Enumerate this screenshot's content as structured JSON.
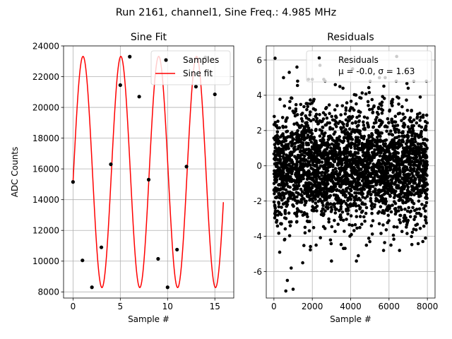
{
  "suptitle": "Run 2161, channel1, Sine Freq.: 4.985 MHz",
  "chart_data": [
    {
      "type": "scatter",
      "title": "Sine Fit",
      "xlabel": "Sample #",
      "ylabel": "ADC Counts",
      "xlim": [
        -1,
        17
      ],
      "ylim": [
        7600,
        24000
      ],
      "xticks": [
        0,
        5,
        10,
        15
      ],
      "yticks": [
        8000,
        10000,
        12000,
        14000,
        16000,
        18000,
        20000,
        22000,
        24000
      ],
      "grid": true,
      "legend": [
        "Samples",
        "Sine fit"
      ],
      "legend_position": "upper right",
      "samples": {
        "name": "Samples",
        "x": [
          0,
          1,
          2,
          3,
          4,
          5,
          6,
          7,
          8,
          9,
          10,
          11,
          12,
          13,
          14,
          15
        ],
        "y": [
          15150,
          10050,
          8300,
          10900,
          16300,
          21450,
          23300,
          20700,
          15300,
          10150,
          8300,
          10750,
          16150,
          21350,
          23250,
          20850
        ],
        "color": "#000000"
      },
      "fit": {
        "name": "Sine fit",
        "model": "offset + amplitude*sin(2*pi*freq_per_sample*x + phase)",
        "offset": 15800,
        "amplitude": 7520,
        "freq_per_sample": 0.2498,
        "phase": -0.087,
        "x_range": [
          0,
          15.9
        ],
        "color": "#ff0000"
      }
    },
    {
      "type": "scatter",
      "title": "Residuals",
      "xlabel": "Sample #",
      "ylabel": "",
      "xlim": [
        -400,
        8400
      ],
      "ylim": [
        -7.5,
        6.8
      ],
      "xticks": [
        0,
        2000,
        4000,
        6000,
        8000
      ],
      "yticks": [
        -6,
        -4,
        -2,
        0,
        2,
        4,
        6
      ],
      "grid": true,
      "legend": [
        "Residuals"
      ],
      "legend_extra": "μ = -0.0, σ = 1.63",
      "legend_position": "upper right",
      "n_points": 8000,
      "mean": -0.0,
      "sigma": 1.63,
      "color": "#000000",
      "outliers": {
        "x": [
          60,
          300,
          500,
          550,
          620,
          700,
          800,
          1000,
          1200,
          1500,
          1800,
          2000,
          2400,
          2600,
          3000,
          3600,
          4100,
          4300,
          5000,
          5500,
          5800,
          6400,
          7000,
          7950,
          7900,
          4400,
          2200,
          900,
          3200,
          6100
        ],
        "y": [
          6.1,
          -4.9,
          5.0,
          -4.2,
          -7.1,
          -6.5,
          5.3,
          -7.0,
          5.6,
          -5.5,
          4.9,
          4.9,
          5.7,
          4.9,
          -5.4,
          4.4,
          5.5,
          -5.4,
          -4.3,
          5.0,
          5.0,
          6.2,
          4.4,
          4.8,
          -4.1,
          -5.1,
          -4.5,
          -5.8,
          4.6,
          -4.5
        ]
      }
    }
  ]
}
